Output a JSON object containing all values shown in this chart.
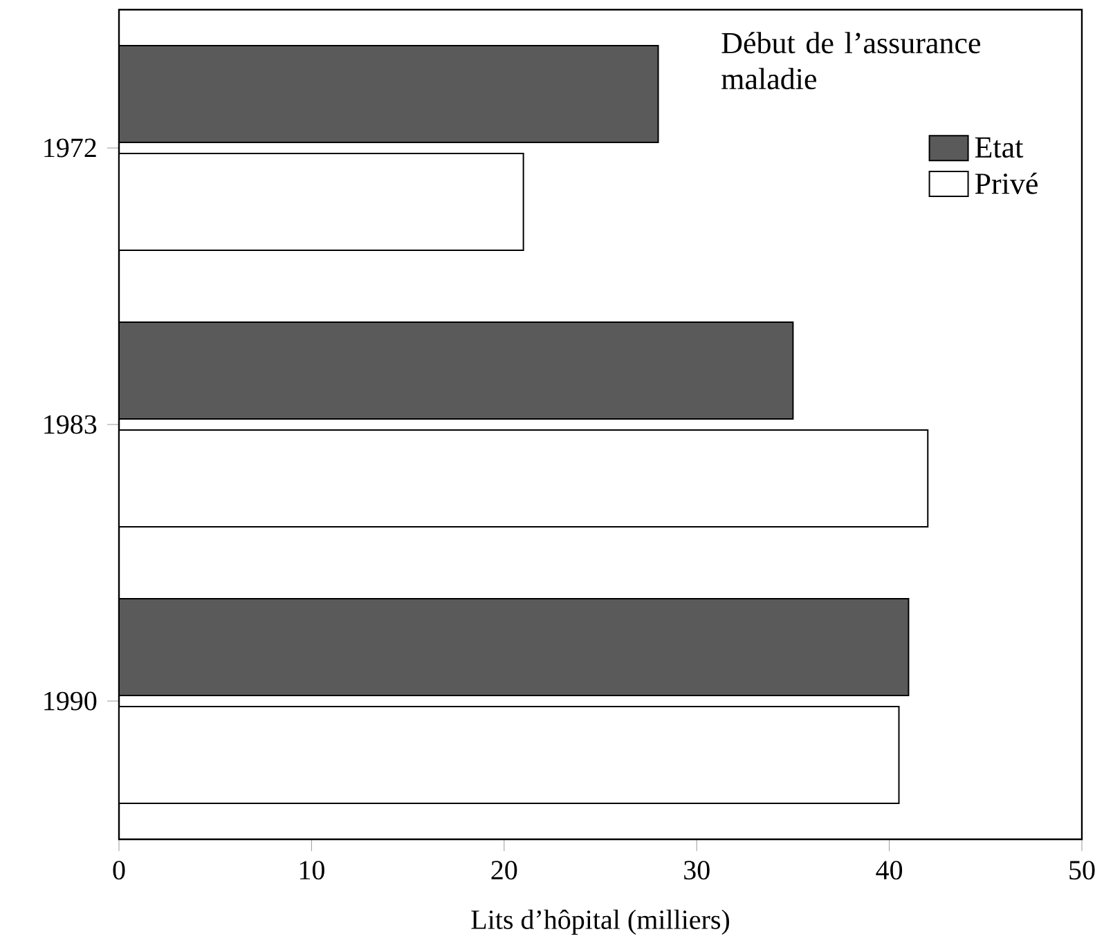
{
  "chart_data": {
    "type": "bar",
    "orientation": "horizontal",
    "xlabel": "Lits d’hôpital (milliers)",
    "legend_title": "Début de l’assurance maladie",
    "categories": [
      "1972",
      "1983",
      "1990"
    ],
    "series": [
      {
        "name": "Etat",
        "color": "#5a5a5a",
        "values": [
          28,
          35,
          41
        ]
      },
      {
        "name": "Privé",
        "color": "#ffffff",
        "values": [
          21,
          42,
          40.5
        ]
      }
    ],
    "xlim": [
      0,
      50
    ],
    "xticks": [
      0,
      10,
      20,
      30,
      40,
      50
    ],
    "legend": "top right",
    "grid": false
  }
}
